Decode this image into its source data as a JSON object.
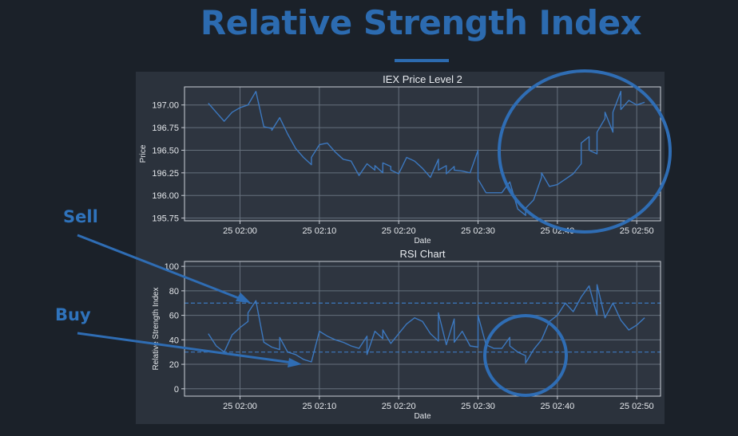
{
  "slide": {
    "title": "Relative Strength Index",
    "callouts": {
      "sell": "Sell",
      "buy": "Buy"
    }
  },
  "colors": {
    "background": "#1b2129",
    "figure_background": "#2b323c",
    "plot_background": "#2e3540",
    "grid": "#66707c",
    "line": "#3c78bf",
    "accent": "#2c6bb0",
    "annotation": "#2f6db4"
  },
  "chart_data": [
    {
      "type": "line",
      "title": "IEX Price Level 2",
      "xlabel": "Date",
      "ylabel": "Price",
      "x_ticks": [
        "25 02:00",
        "25 02:10",
        "25 02:20",
        "25 02:30",
        "25 02:40",
        "25 02:50"
      ],
      "y_ticks": [
        "195.75",
        "196.00",
        "196.25",
        "196.50",
        "196.75",
        "197.00"
      ],
      "ylim": [
        195.72,
        197.2
      ],
      "xlim_minutes": [
        "01:53",
        "02:53"
      ],
      "grid": true,
      "series": [
        {
          "x": [
            "01:56",
            "01:57",
            "01:58",
            "01:59",
            "02:00",
            "02:01",
            "02:02",
            "02:03",
            "02:04",
            "02:04",
            "02:05",
            "02:06",
            "02:07",
            "02:08",
            "02:09",
            "02:09",
            "02:10",
            "02:11",
            "02:12",
            "02:13",
            "02:14",
            "02:15",
            "02:16",
            "02:17",
            "02:17",
            "02:18",
            "02:18",
            "02:19",
            "02:19",
            "02:20",
            "02:21",
            "02:22",
            "02:23",
            "02:24",
            "02:25",
            "02:25",
            "02:26",
            "02:26",
            "02:27",
            "02:27",
            "02:28",
            "02:29",
            "02:30",
            "02:30",
            "02:31",
            "02:32",
            "02:33",
            "02:34",
            "02:35",
            "02:36",
            "02:36",
            "02:37",
            "02:38",
            "02:38",
            "02:39",
            "02:40",
            "02:41",
            "02:42",
            "02:43",
            "02:43",
            "02:44",
            "02:44",
            "02:45",
            "02:45",
            "02:46",
            "02:46",
            "02:47",
            "02:47",
            "02:48",
            "02:48",
            "02:49",
            "02:50",
            "02:51"
          ],
          "y": [
            197.02,
            196.92,
            196.82,
            196.92,
            196.97,
            197.0,
            197.15,
            196.76,
            196.74,
            196.72,
            196.86,
            196.68,
            196.52,
            196.42,
            196.34,
            196.42,
            196.56,
            196.58,
            196.48,
            196.4,
            196.38,
            196.22,
            196.35,
            196.28,
            196.33,
            196.25,
            196.36,
            196.32,
            196.28,
            196.24,
            196.42,
            196.38,
            196.3,
            196.2,
            196.4,
            196.28,
            196.33,
            196.24,
            196.32,
            196.28,
            196.27,
            196.25,
            196.5,
            196.18,
            196.03,
            196.03,
            196.03,
            196.15,
            195.85,
            195.78,
            195.86,
            195.95,
            196.2,
            196.25,
            196.1,
            196.12,
            196.18,
            196.24,
            196.35,
            196.58,
            196.65,
            196.5,
            196.46,
            196.7,
            196.85,
            196.92,
            196.7,
            196.92,
            197.15,
            196.95,
            197.05,
            197.0,
            197.03
          ]
        }
      ]
    },
    {
      "type": "line",
      "title": "RSI Chart",
      "xlabel": "Date",
      "ylabel": "Relative Strength Index",
      "x_ticks": [
        "25 02:00",
        "25 02:10",
        "25 02:20",
        "25 02:30",
        "25 02:40",
        "25 02:50"
      ],
      "y_ticks": [
        "0",
        "20",
        "40",
        "60",
        "80",
        "100"
      ],
      "ylim": [
        -6,
        104
      ],
      "xlim_minutes": [
        "01:53",
        "02:53"
      ],
      "grid": true,
      "reference_lines": [
        70,
        30
      ],
      "series": [
        {
          "x": [
            "01:56",
            "01:57",
            "01:58",
            "01:59",
            "02:00",
            "02:01",
            "02:01",
            "02:02",
            "02:03",
            "02:04",
            "02:05",
            "02:05",
            "02:06",
            "02:07",
            "02:08",
            "02:09",
            "02:10",
            "02:11",
            "02:12",
            "02:13",
            "02:14",
            "02:15",
            "02:16",
            "02:16",
            "02:17",
            "02:18",
            "02:18",
            "02:19",
            "02:20",
            "02:21",
            "02:22",
            "02:23",
            "02:24",
            "02:25",
            "02:25",
            "02:26",
            "02:27",
            "02:27",
            "02:28",
            "02:29",
            "02:30",
            "02:30",
            "02:31",
            "02:32",
            "02:33",
            "02:34",
            "02:34",
            "02:35",
            "02:36",
            "02:36",
            "02:37",
            "02:38",
            "02:39",
            "02:40",
            "02:41",
            "02:42",
            "02:43",
            "02:44",
            "02:45",
            "02:45",
            "02:46",
            "02:47",
            "02:48",
            "02:49",
            "02:50",
            "02:51"
          ],
          "y": [
            45,
            35,
            30,
            44,
            50,
            55,
            62,
            72,
            38,
            34,
            32,
            42,
            30,
            28,
            24,
            22,
            47,
            43,
            40,
            38,
            35,
            33,
            43,
            28,
            47,
            41,
            48,
            37,
            45,
            53,
            58,
            55,
            45,
            39,
            62,
            36,
            57,
            38,
            47,
            35,
            34,
            60,
            36,
            33,
            33,
            42,
            35,
            30,
            27,
            21,
            32,
            40,
            55,
            60,
            70,
            63,
            75,
            84,
            60,
            85,
            58,
            70,
            56,
            48,
            52,
            58
          ]
        }
      ]
    }
  ]
}
